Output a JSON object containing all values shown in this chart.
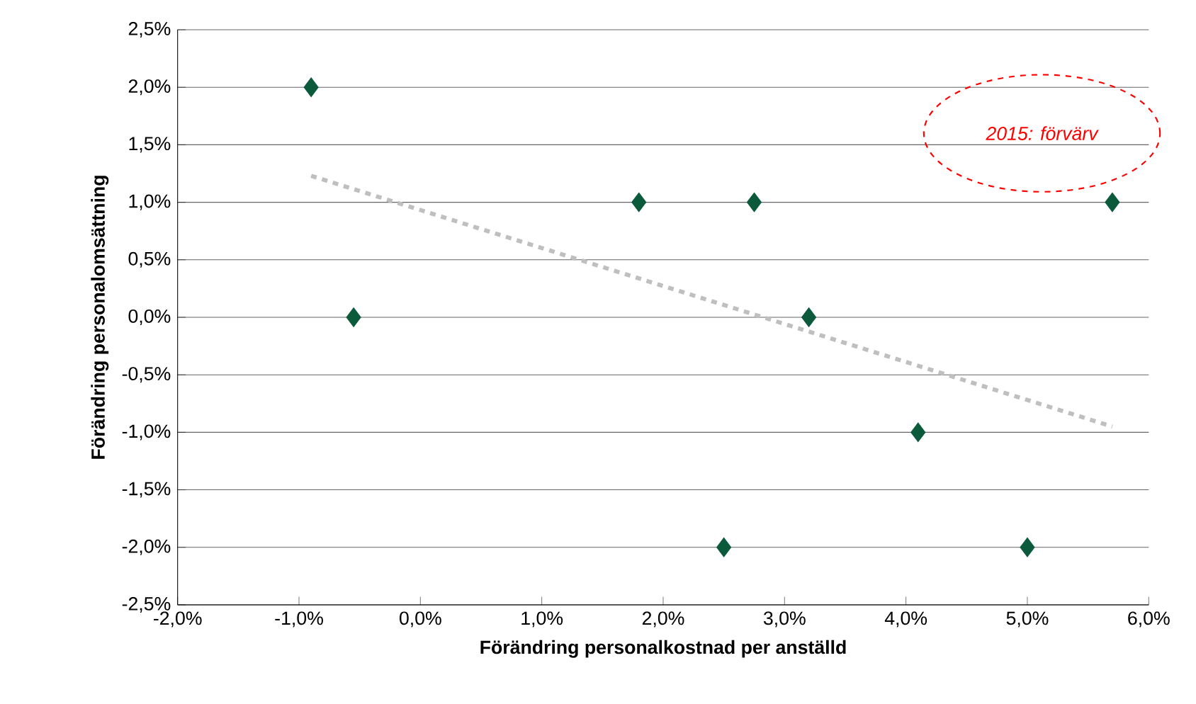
{
  "chart_data": {
    "type": "scatter",
    "xlabel": "Förändring personalkostnad per anställd",
    "ylabel": "Förändring personalomsättning",
    "series": [
      {
        "color": "#0b5a3c",
        "marker": "diamond",
        "x": [
          -0.9,
          -0.55,
          1.8,
          2.75,
          3.2,
          2.5,
          4.1,
          5.0,
          5.7
        ],
        "values": [
          2.0,
          0.0,
          1.0,
          1.0,
          0.0,
          -2.0,
          -1.0,
          -2.0,
          1.0
        ]
      },
      {
        "type": "line",
        "color": "#bfbfbf",
        "line_style": "dashed",
        "marker": "none",
        "x": [
          -0.9,
          5.7
        ],
        "values": [
          1.23,
          -0.95
        ]
      }
    ],
    "xlim": [
      -2,
      6
    ],
    "ylim": [
      -2.5,
      2.5
    ],
    "xticks": [
      {
        "value": -2,
        "label": "-2,0%"
      },
      {
        "value": -1,
        "label": "-1,0%"
      },
      {
        "value": 0,
        "label": "0,0%"
      },
      {
        "value": 1,
        "label": "1,0%"
      },
      {
        "value": 2,
        "label": "2,0%"
      },
      {
        "value": 3,
        "label": "3,0%"
      },
      {
        "value": 4,
        "label": "4,0%"
      },
      {
        "value": 5,
        "label": "5,0%"
      },
      {
        "value": 6,
        "label": "6,0%"
      }
    ],
    "yticks": [
      {
        "value": -2.5,
        "label": "-2,5%"
      },
      {
        "value": -2,
        "label": "-2,0%"
      },
      {
        "value": -1.5,
        "label": "-1,5%"
      },
      {
        "value": -1,
        "label": "-1,0%"
      },
      {
        "value": -0.5,
        "label": "-0,5%"
      },
      {
        "value": 0,
        "label": "0,0%"
      },
      {
        "value": 0.5,
        "label": "0,5%"
      },
      {
        "value": 1,
        "label": "1,0%"
      },
      {
        "value": 1.5,
        "label": "1,5%"
      },
      {
        "value": 2,
        "label": "2,0%"
      },
      {
        "value": 2.5,
        "label": "2,5%"
      }
    ],
    "grid": "y",
    "annotations": [
      "2015: förvärv"
    ]
  }
}
